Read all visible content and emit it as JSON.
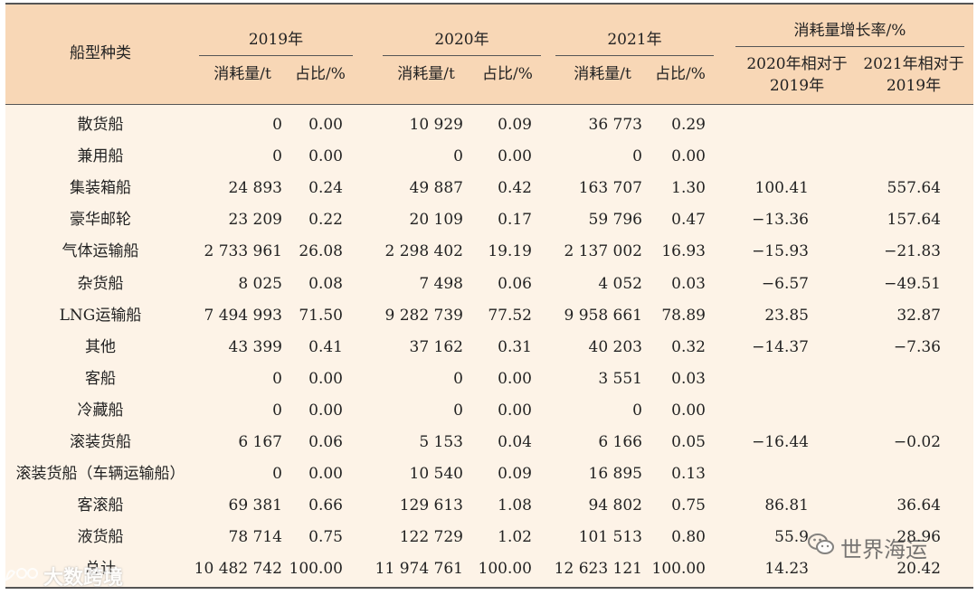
{
  "table": {
    "header": {
      "col_ship_type": "船型种类",
      "years": [
        "2019年",
        "2020年",
        "2021年"
      ],
      "consumption_label": "消耗量/t",
      "share_label": "占比/%",
      "growth_group": "消耗量增长率/%",
      "growth_2020_line1": "2020年相对于",
      "growth_2020_line2": "2019年",
      "growth_2021_line1": "2021年相对于",
      "growth_2021_line2": "2019年"
    },
    "rows": [
      {
        "name": "散货船",
        "c2019": "0",
        "s2019": "0.00",
        "c2020": "10 929",
        "s2020": "0.09",
        "c2021": "36 773",
        "s2021": "0.29",
        "g2020": "",
        "g2021": ""
      },
      {
        "name": "兼用船",
        "c2019": "0",
        "s2019": "0.00",
        "c2020": "0",
        "s2020": "0.00",
        "c2021": "0",
        "s2021": "0.00",
        "g2020": "",
        "g2021": ""
      },
      {
        "name": "集装箱船",
        "c2019": "24 893",
        "s2019": "0.24",
        "c2020": "49 887",
        "s2020": "0.42",
        "c2021": "163 707",
        "s2021": "1.30",
        "g2020": "100.41",
        "g2021": "557.64"
      },
      {
        "name": "豪华邮轮",
        "c2019": "23 209",
        "s2019": "0.22",
        "c2020": "20 109",
        "s2020": "0.17",
        "c2021": "59 796",
        "s2021": "0.47",
        "g2020": "−13.36",
        "g2021": "157.64"
      },
      {
        "name": "气体运输船",
        "c2019": "2 733 961",
        "s2019": "26.08",
        "c2020": "2 298 402",
        "s2020": "19.19",
        "c2021": "2 137 002",
        "s2021": "16.93",
        "g2020": "−15.93",
        "g2021": "−21.83"
      },
      {
        "name": "杂货船",
        "c2019": "8 025",
        "s2019": "0.08",
        "c2020": "7 498",
        "s2020": "0.06",
        "c2021": "4 052",
        "s2021": "0.03",
        "g2020": "−6.57",
        "g2021": "−49.51"
      },
      {
        "name": "LNG运输船",
        "c2019": "7 494 993",
        "s2019": "71.50",
        "c2020": "9 282 739",
        "s2020": "77.52",
        "c2021": "9 958 661",
        "s2021": "78.89",
        "g2020": "23.85",
        "g2021": "32.87"
      },
      {
        "name": "其他",
        "c2019": "43 399",
        "s2019": "0.41",
        "c2020": "37 162",
        "s2020": "0.31",
        "c2021": "40 203",
        "s2021": "0.32",
        "g2020": "−14.37",
        "g2021": "−7.36"
      },
      {
        "name": "客船",
        "c2019": "0",
        "s2019": "0.00",
        "c2020": "0",
        "s2020": "0.00",
        "c2021": "3 551",
        "s2021": "0.03",
        "g2020": "",
        "g2021": ""
      },
      {
        "name": "冷藏船",
        "c2019": "0",
        "s2019": "0.00",
        "c2020": "0",
        "s2020": "0.00",
        "c2021": "0",
        "s2021": "0.00",
        "g2020": "",
        "g2021": ""
      },
      {
        "name": "滚装货船",
        "c2019": "6 167",
        "s2019": "0.06",
        "c2020": "5 153",
        "s2020": "0.04",
        "c2021": "6 166",
        "s2021": "0.05",
        "g2020": "−16.44",
        "g2021": "−0.02"
      },
      {
        "name": "滚装货船（车辆运输船）",
        "c2019": "0",
        "s2019": "0.00",
        "c2020": "10 540",
        "s2020": "0.09",
        "c2021": "16 895",
        "s2021": "0.13",
        "g2020": "",
        "g2021": ""
      },
      {
        "name": "客滚船",
        "c2019": "69 381",
        "s2019": "0.66",
        "c2020": "129 613",
        "s2020": "1.08",
        "c2021": "94 802",
        "s2021": "0.75",
        "g2020": "86.81",
        "g2021": "36.64"
      },
      {
        "name": "液货船",
        "c2019": "78 714",
        "s2019": "0.75",
        "c2020": "122 729",
        "s2020": "1.02",
        "c2021": "101 513",
        "s2021": "0.80",
        "g2020": "55.9",
        "g2021": "28.96"
      },
      {
        "name": "总计",
        "c2019": "10 482 742",
        "s2019": "100.00",
        "c2020": "11 974 761",
        "s2020": "100.00",
        "c2021": "12 623 121",
        "s2021": "100.00",
        "g2020": "14.23",
        "g2021": "20.42"
      }
    ]
  },
  "watermarks": {
    "right_text": "世界海运",
    "right_icon": "wechat-icon",
    "left_text": "大数跨境",
    "left_icon": "brand-logo-icon"
  }
}
